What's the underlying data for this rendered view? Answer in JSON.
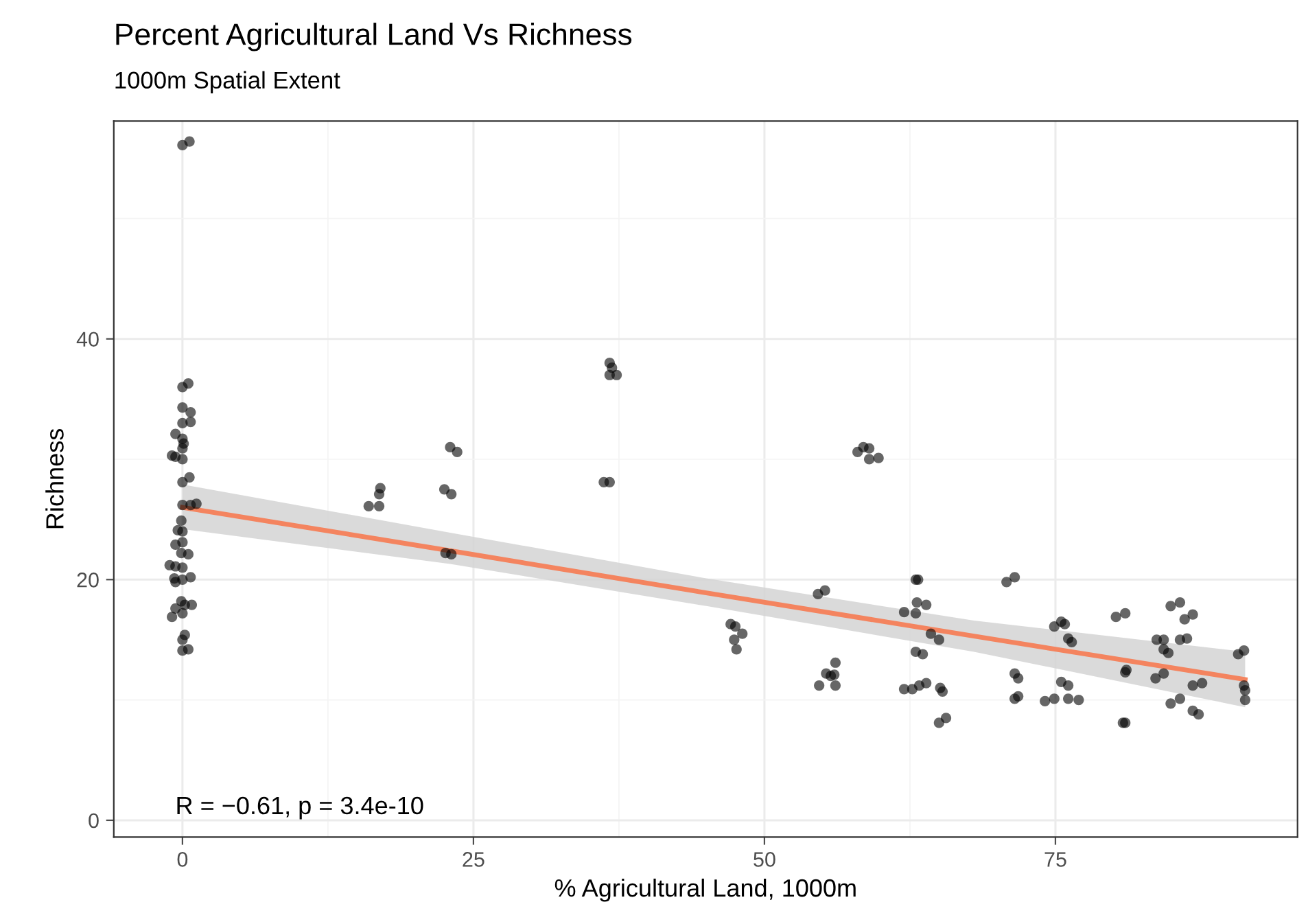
{
  "chart_data": {
    "type": "scatter",
    "title": "Percent Agricultural Land Vs Richness",
    "subtitle": "1000m Spatial Extent",
    "xlabel": "% Agricultural Land, 1000m",
    "ylabel": "Richness",
    "annotations": [
      "R = −0.61, p = 3.4e-10"
    ],
    "xlim": [
      -5.9,
      95.8
    ],
    "ylim": [
      -1.4,
      58.1
    ],
    "xticks": [
      0,
      25,
      50,
      75
    ],
    "yticks": [
      0,
      20,
      40
    ],
    "grid": true,
    "series": [
      {
        "marker": "circle",
        "color": "#000000",
        "x": [
          0.0,
          0.6,
          0.0,
          0.5,
          0.0,
          0.7,
          0.7,
          0.0,
          -0.6,
          0.0,
          0.1,
          0.0,
          -0.9,
          -0.6,
          0.0,
          0.6,
          0.0,
          0.0,
          1.2,
          0.7,
          -0.1,
          -0.4,
          0.0,
          -0.6,
          0.0,
          0.5,
          -0.1,
          -1.1,
          -0.6,
          0.0,
          -0.7,
          0.0,
          0.7,
          -0.6,
          -0.1,
          0.2,
          0.8,
          -0.6,
          0.0,
          -0.9,
          0.2,
          0.0,
          0.5,
          0.0,
          16.0,
          16.9,
          16.9,
          17.0,
          22.5,
          23.1,
          23.0,
          23.6,
          22.6,
          23.1,
          36.2,
          36.7,
          36.7,
          36.9,
          36.7,
          37.3,
          54.6,
          55.2,
          47.1,
          47.5,
          48.1,
          47.4,
          47.6,
          58.0,
          58.5,
          59.0,
          59.0,
          59.8,
          54.7,
          55.3,
          55.7,
          56.1,
          56.1,
          56.0,
          63.0,
          63.2,
          63.1,
          63.9,
          62.0,
          63.0,
          64.3,
          65.0,
          63.0,
          63.6,
          62.0,
          62.7,
          63.3,
          63.9,
          65.1,
          65.3,
          65.0,
          65.6,
          70.8,
          71.5,
          71.5,
          71.8,
          71.5,
          71.8,
          74.1,
          74.9,
          74.9,
          75.5,
          75.8,
          76.1,
          76.4,
          75.5,
          76.1,
          76.1,
          77.0,
          80.2,
          81.0,
          81.0,
          81.1,
          80.8,
          81.0,
          83.6,
          84.3,
          83.7,
          84.3,
          84.3,
          84.7,
          84.9,
          85.7,
          86.1,
          86.8,
          85.7,
          86.3,
          84.9,
          85.7,
          86.8,
          87.6,
          86.8,
          87.3,
          90.7,
          91.2,
          91.2,
          91.3,
          91.3
        ],
        "values": [
          56.1,
          56.4,
          36.0,
          36.3,
          34.3,
          33.9,
          33.1,
          33.0,
          32.1,
          31.7,
          31.3,
          30.9,
          30.3,
          30.2,
          30.0,
          28.5,
          28.1,
          26.2,
          26.3,
          26.2,
          24.9,
          24.1,
          24.0,
          22.9,
          23.1,
          22.1,
          22.2,
          21.2,
          21.1,
          21.0,
          20.1,
          20.0,
          20.2,
          19.8,
          18.2,
          17.9,
          17.9,
          17.6,
          17.2,
          16.9,
          15.4,
          15.0,
          14.2,
          14.1,
          26.1,
          26.1,
          27.1,
          27.6,
          27.5,
          27.1,
          31.0,
          30.6,
          22.2,
          22.1,
          28.1,
          28.1,
          38.0,
          37.6,
          37.0,
          37.0,
          18.8,
          19.1,
          16.3,
          16.1,
          15.5,
          15.0,
          14.2,
          30.6,
          31.0,
          30.9,
          30.0,
          30.1,
          11.2,
          12.2,
          12.0,
          13.1,
          11.2,
          12.1,
          20.0,
          20.0,
          18.1,
          17.9,
          17.3,
          17.2,
          15.5,
          15.0,
          14.0,
          13.8,
          10.9,
          10.9,
          11.2,
          11.4,
          11.0,
          10.7,
          8.1,
          8.5,
          19.8,
          20.2,
          12.2,
          11.8,
          10.1,
          10.3,
          9.9,
          10.1,
          16.1,
          16.5,
          16.3,
          15.1,
          14.8,
          11.5,
          11.2,
          10.1,
          10.0,
          16.9,
          17.2,
          12.3,
          12.5,
          8.1,
          8.1,
          11.8,
          12.2,
          15.0,
          15.0,
          14.2,
          13.9,
          17.8,
          18.1,
          16.7,
          17.1,
          15.0,
          15.1,
          9.7,
          10.1,
          11.2,
          11.4,
          9.1,
          8.8,
          13.8,
          14.1,
          11.2,
          10.8,
          10.0
        ]
      },
      {
        "type": "line",
        "color": "#f4845f",
        "x": [
          0,
          23,
          45,
          68,
          91.3
        ],
        "values": [
          26.0,
          22.4,
          18.9,
          15.3,
          11.7
        ],
        "lower": [
          24.2,
          21.3,
          17.8,
          14.0,
          9.4
        ],
        "upper": [
          27.9,
          23.9,
          20.1,
          16.6,
          14.0
        ]
      }
    ]
  }
}
